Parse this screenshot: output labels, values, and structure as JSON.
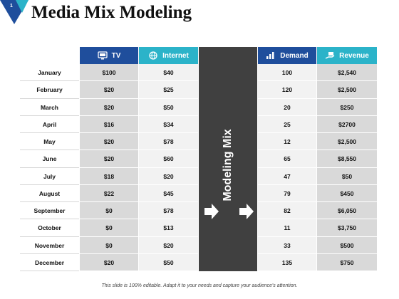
{
  "slide": {
    "number": "1",
    "title": "Media Mix Modeling",
    "footer": "This slide is 100% editable. Adapt it to your needs and capture your audience's attention.",
    "mix_label": "Modeling Mix"
  },
  "headers": {
    "tv": {
      "label": "TV",
      "icon": "tv-icon"
    },
    "internet": {
      "label": "Internet",
      "icon": "globe-icon"
    },
    "demand": {
      "label": "Demand",
      "icon": "bar-chart-icon"
    },
    "revenue": {
      "label": "Revenue",
      "icon": "money-hand-icon"
    }
  },
  "rows": [
    {
      "month": "January",
      "tv": "$100",
      "internet": "$40",
      "demand": "100",
      "revenue": "$2,540"
    },
    {
      "month": "February",
      "tv": "$20",
      "internet": "$25",
      "demand": "120",
      "revenue": "$2,500"
    },
    {
      "month": "March",
      "tv": "$20",
      "internet": "$50",
      "demand": "20",
      "revenue": "$250"
    },
    {
      "month": "April",
      "tv": "$16",
      "internet": "$34",
      "demand": "25",
      "revenue": "$2700"
    },
    {
      "month": "May",
      "tv": "$20",
      "internet": "$78",
      "demand": "12",
      "revenue": "$2,500"
    },
    {
      "month": "June",
      "tv": "$20",
      "internet": "$60",
      "demand": "65",
      "revenue": "$8,550"
    },
    {
      "month": "July",
      "tv": "$18",
      "internet": "$20",
      "demand": "47",
      "revenue": "$50"
    },
    {
      "month": "August",
      "tv": "$22",
      "internet": "$45",
      "demand": "79",
      "revenue": "$450"
    },
    {
      "month": "September",
      "tv": "$0",
      "internet": "$78",
      "demand": "82",
      "revenue": "$6,050"
    },
    {
      "month": "October",
      "tv": "$0",
      "internet": "$13",
      "demand": "11",
      "revenue": "$3,750"
    },
    {
      "month": "November",
      "tv": "$0",
      "internet": "$20",
      "demand": "33",
      "revenue": "$500"
    },
    {
      "month": "December",
      "tv": "$20",
      "internet": "$50",
      "demand": "135",
      "revenue": "$750"
    }
  ],
  "colors": {
    "dark_blue": "#1f4e9c",
    "teal": "#2bb3c9",
    "gray_cell": "#d9d9d9",
    "light_cell": "#f2f2f2",
    "mix_bg": "#404040"
  }
}
